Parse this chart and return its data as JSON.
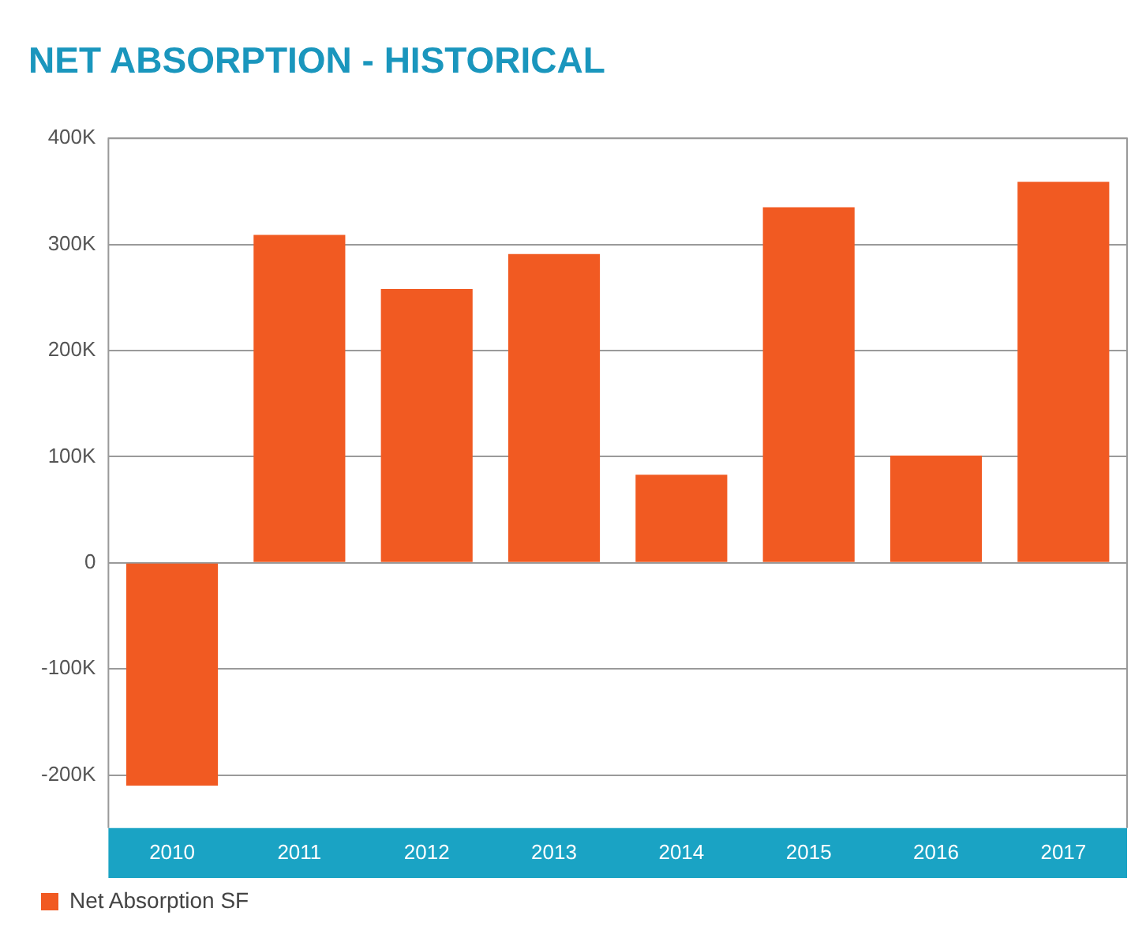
{
  "chart_data": {
    "type": "bar",
    "title": "NET ABSORPTION - HISTORICAL",
    "categories": [
      "2010",
      "2011",
      "2012",
      "2013",
      "2014",
      "2015",
      "2016",
      "2017"
    ],
    "series": [
      {
        "name": "Net Absorption SF",
        "color": "#f15a22",
        "values": [
          -210000,
          309000,
          258000,
          291000,
          83000,
          335000,
          101000,
          359000
        ]
      }
    ],
    "ylim": [
      -250000,
      400000
    ],
    "yticks": [
      {
        "value": -200000,
        "label": "-200K"
      },
      {
        "value": -100000,
        "label": "-100K"
      },
      0,
      {
        "value": 100000,
        "label": "100K"
      },
      {
        "value": 200000,
        "label": "200K"
      },
      {
        "value": 300000,
        "label": "300K"
      },
      {
        "value": 400000,
        "label": "400K"
      }
    ],
    "grid": "y",
    "legend": "bottom left"
  }
}
